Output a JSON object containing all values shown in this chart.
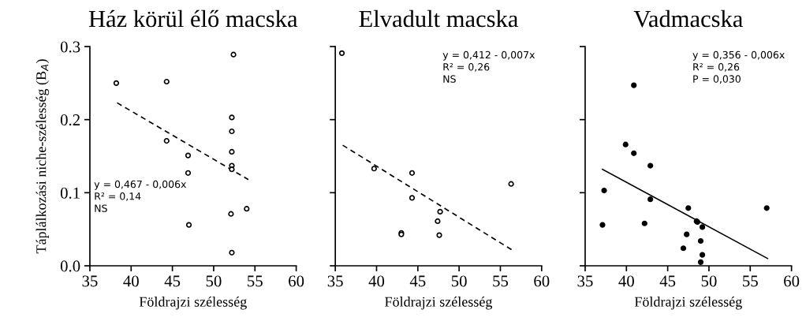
{
  "chart_data": [
    {
      "type": "scatter",
      "title": "Ház körül élő macska",
      "xlabel": "Földrajzi szélesség",
      "ylabel": "Táplálkozási niche-szélesség (B$_{A}$)",
      "xlim": [
        35,
        60
      ],
      "xticks": [
        35,
        40,
        45,
        50,
        55,
        60
      ],
      "ylim": [
        0,
        0.3
      ],
      "yticks": [
        {
          "value": 0,
          "label": "0.0"
        },
        0.1,
        0.2,
        0.3
      ],
      "grid": false,
      "legend": false,
      "marker": "circle",
      "annotations": [
        "y = 0,467 - 0,006x",
        "R² = 0,14",
        "NS"
      ],
      "series": [
        {
          "color": "#ffffff",
          "x": [
            38.2,
            44.3,
            52.4,
            44.3,
            52.2,
            52.2,
            52.2,
            46.9,
            52.2,
            52.2,
            46.9,
            52.1,
            54.0,
            47.0,
            52.2
          ],
          "values": [
            0.25,
            0.252,
            0.289,
            0.171,
            0.203,
            0.184,
            0.156,
            0.151,
            0.137,
            0.132,
            0.127,
            0.071,
            0.078,
            0.056,
            0.018
          ]
        },
        {
          "type": "line",
          "color": "#000000",
          "line_style": "dashed",
          "marker": "none",
          "x": [
            38.3,
            54.2
          ],
          "values": [
            0.223,
            0.118
          ]
        }
      ]
    },
    {
      "type": "scatter",
      "title": "Elvadult macska",
      "xlabel": "Földrajzi szélesség",
      "xlim": [
        35,
        60
      ],
      "xticks": [
        35,
        40,
        45,
        50,
        55,
        60
      ],
      "ylim": [
        0,
        0.3
      ],
      "yticks": [
        0,
        0.1,
        0.2,
        0.3
      ],
      "tick_labels": "x",
      "grid": false,
      "legend": false,
      "marker": "circle",
      "annotations": [
        "y = 0,412 - 0,007x",
        "R² = 0,26",
        "NS"
      ],
      "series": [
        {
          "color": "#ffffff",
          "x": [
            35.8,
            39.7,
            44.3,
            44.3,
            43.0,
            43.0,
            47.7,
            47.4,
            47.6,
            56.3
          ],
          "values": [
            0.291,
            0.133,
            0.127,
            0.093,
            0.045,
            0.043,
            0.074,
            0.061,
            0.042,
            0.112
          ]
        },
        {
          "type": "line",
          "color": "#000000",
          "line_style": "dashed",
          "marker": "none",
          "x": [
            35.9,
            56.5
          ],
          "values": [
            0.165,
            0.021
          ]
        }
      ]
    },
    {
      "type": "scatter",
      "title": "Vadmacska",
      "xlabel": "Földrajzi szélesség",
      "xlim": [
        35,
        60
      ],
      "xticks": [
        35,
        40,
        45,
        50,
        55,
        60
      ],
      "ylim": [
        0,
        0.3
      ],
      "yticks": [
        0,
        0.1,
        0.2,
        0.3
      ],
      "tick_labels": "x",
      "grid": false,
      "legend": false,
      "marker": "circle",
      "annotations": [
        "y = 0,356 - 0,006x",
        "R² = 0,26",
        "P = 0,030"
      ],
      "series": [
        {
          "color": "#000000",
          "x": [
            40.9,
            39.9,
            40.9,
            42.9,
            37.3,
            42.9,
            37.1,
            42.2,
            47.5,
            48.5,
            48.6,
            49.2,
            47.3,
            49.0,
            46.9,
            49.2,
            49.0,
            57.0
          ],
          "values": [
            0.247,
            0.166,
            0.154,
            0.137,
            0.103,
            0.091,
            0.056,
            0.058,
            0.079,
            0.061,
            0.06,
            0.053,
            0.043,
            0.034,
            0.024,
            0.015,
            0.005,
            0.079
          ]
        },
        {
          "type": "line",
          "color": "#000000",
          "line_style": "solid",
          "marker": "none",
          "x": [
            37.1,
            57.1
          ],
          "values": [
            0.132,
            0.01
          ]
        }
      ]
    }
  ]
}
